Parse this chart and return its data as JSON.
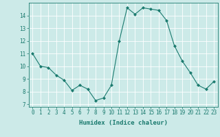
{
  "x": [
    0,
    1,
    2,
    3,
    4,
    5,
    6,
    7,
    8,
    9,
    10,
    11,
    12,
    13,
    14,
    15,
    16,
    17,
    18,
    19,
    20,
    21,
    22,
    23
  ],
  "y": [
    11.0,
    10.0,
    9.9,
    9.3,
    8.9,
    8.1,
    8.5,
    8.2,
    7.3,
    7.5,
    8.5,
    12.0,
    14.6,
    14.1,
    14.6,
    14.5,
    14.4,
    13.6,
    11.6,
    10.4,
    9.5,
    8.5,
    8.2,
    8.8
  ],
  "line_color": "#1a7a6e",
  "marker": "D",
  "marker_size": 2,
  "bg_color": "#cceae8",
  "grid_color": "#ffffff",
  "xlabel": "Humidex (Indice chaleur)",
  "xlim": [
    -0.5,
    23.5
  ],
  "ylim": [
    6.8,
    15.0
  ],
  "yticks": [
    7,
    8,
    9,
    10,
    11,
    12,
    13,
    14
  ],
  "xticks": [
    0,
    1,
    2,
    3,
    4,
    5,
    6,
    7,
    8,
    9,
    10,
    11,
    12,
    13,
    14,
    15,
    16,
    17,
    18,
    19,
    20,
    21,
    22,
    23
  ],
  "tick_color": "#1a7a6e",
  "label_fontsize": 6.5,
  "tick_fontsize": 5.5
}
